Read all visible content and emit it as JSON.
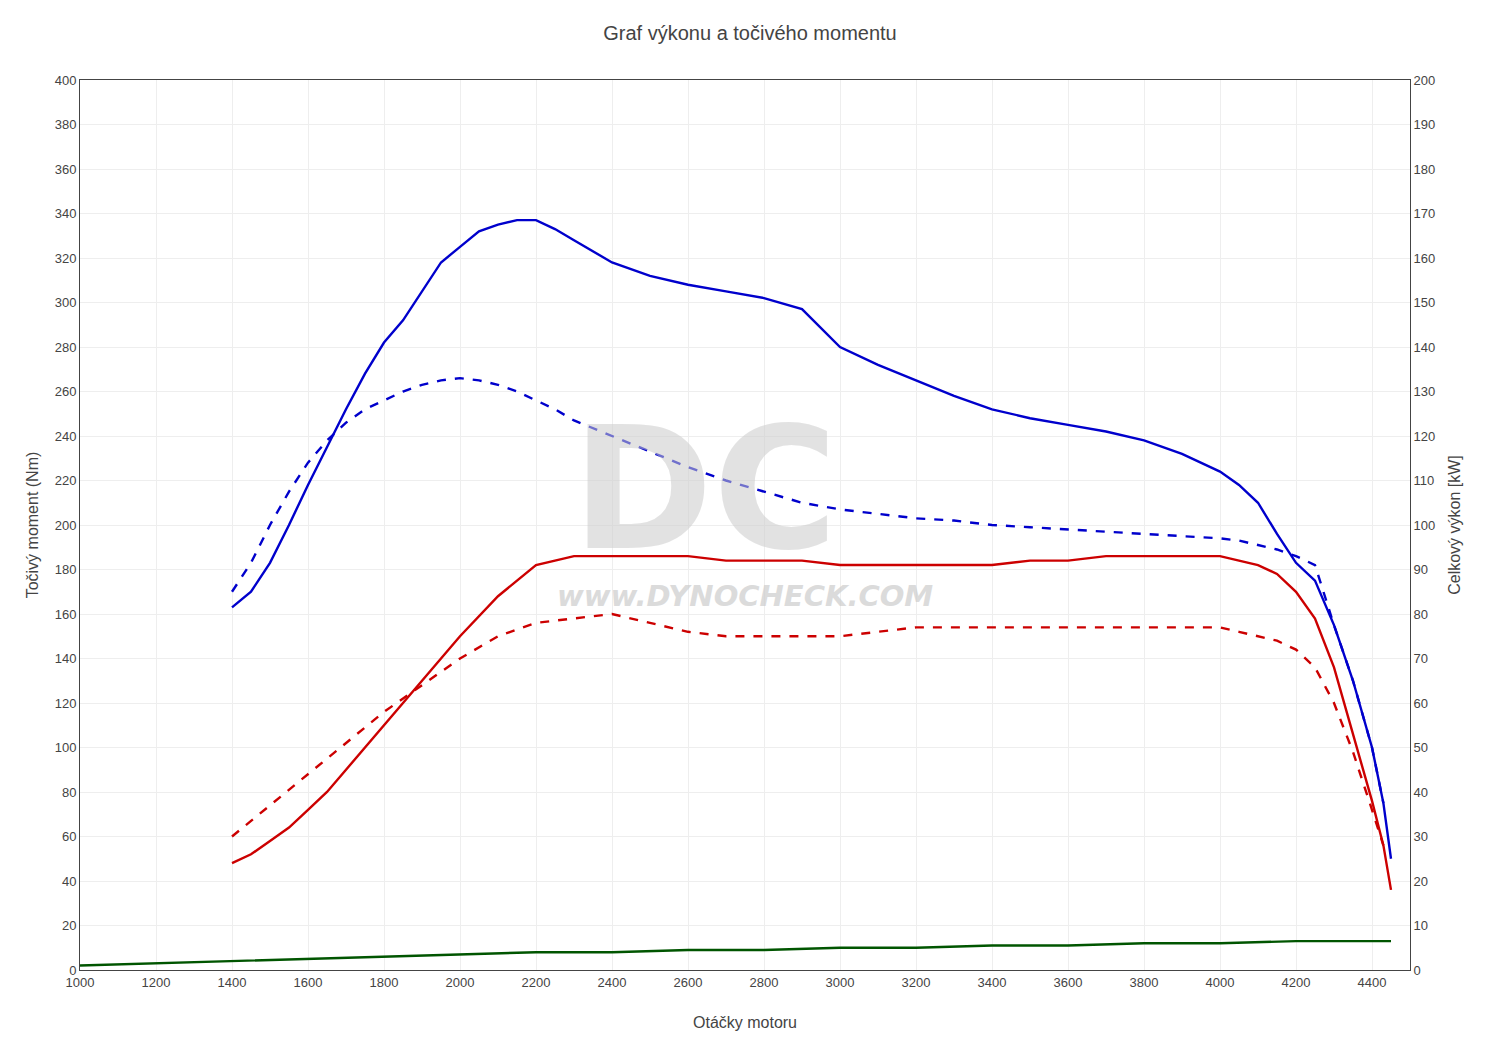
{
  "chart_data": {
    "type": "line",
    "title": "Graf výkonu a točivého momentu",
    "xlabel": "Otáčky motoru",
    "ylabel": "Točivý moment (Nm)",
    "y2label": "Celkový výkon [kW]",
    "xlim": [
      1000,
      4500
    ],
    "ylim": [
      0,
      400
    ],
    "y2lim": [
      0,
      200
    ],
    "xticks": [
      1000,
      1200,
      1400,
      1600,
      1800,
      2000,
      2200,
      2400,
      2600,
      2800,
      3000,
      3200,
      3400,
      3600,
      3800,
      4000,
      4200,
      4400
    ],
    "yticks": [
      0,
      20,
      40,
      60,
      80,
      100,
      120,
      140,
      160,
      180,
      200,
      220,
      240,
      260,
      280,
      300,
      320,
      340,
      360,
      380,
      400
    ],
    "y2ticks": [
      0,
      10,
      20,
      30,
      40,
      50,
      60,
      70,
      80,
      90,
      100,
      110,
      120,
      130,
      140,
      150,
      160,
      170,
      180,
      190,
      200
    ],
    "grid": true,
    "annotations": [
      "DC",
      "www.DYNOCHECK.COM"
    ],
    "series": [
      {
        "color": "#0000cc",
        "line_style": "solid",
        "x": [
          1400,
          1450,
          1500,
          1550,
          1600,
          1650,
          1700,
          1750,
          1800,
          1850,
          1900,
          1950,
          2000,
          2050,
          2100,
          2150,
          2200,
          2250,
          2300,
          2400,
          2500,
          2600,
          2700,
          2800,
          2900,
          3000,
          3100,
          3200,
          3300,
          3400,
          3500,
          3600,
          3700,
          3800,
          3900,
          4000,
          4050,
          4100,
          4150,
          4200,
          4250,
          4300,
          4350,
          4400,
          4430,
          4450
        ],
        "values": [
          163,
          170,
          183,
          200,
          218,
          235,
          252,
          268,
          282,
          292,
          305,
          318,
          325,
          332,
          335,
          337,
          337,
          333,
          328,
          318,
          312,
          308,
          305,
          302,
          297,
          280,
          272,
          265,
          258,
          252,
          248,
          245,
          242,
          238,
          232,
          224,
          218,
          210,
          196,
          183,
          175,
          155,
          130,
          100,
          75,
          50
        ]
      },
      {
        "color": "#0000cc",
        "line_style": "dashed",
        "x": [
          1400,
          1450,
          1500,
          1550,
          1600,
          1650,
          1700,
          1750,
          1800,
          1850,
          1900,
          1950,
          2000,
          2050,
          2100,
          2150,
          2200,
          2250,
          2300,
          2400,
          2500,
          2600,
          2700,
          2800,
          2900,
          3000,
          3100,
          3200,
          3300,
          3400,
          3500,
          3600,
          3700,
          3800,
          3900,
          4000,
          4050,
          4100,
          4150,
          4200,
          4250,
          4300,
          4350,
          4400,
          4430
        ],
        "values": [
          170,
          183,
          200,
          215,
          228,
          238,
          246,
          252,
          256,
          260,
          263,
          265,
          266,
          265,
          263,
          260,
          256,
          252,
          247,
          240,
          233,
          226,
          220,
          215,
          210,
          207,
          205,
          203,
          202,
          200,
          199,
          198,
          197,
          196,
          195,
          194,
          193,
          191,
          189,
          186,
          182,
          155,
          130,
          100,
          75
        ]
      },
      {
        "color": "#cc0000",
        "line_style": "solid",
        "axis": "y2",
        "x": [
          1400,
          1450,
          1500,
          1550,
          1600,
          1650,
          1700,
          1750,
          1800,
          1850,
          1900,
          1950,
          2000,
          2100,
          2200,
          2300,
          2400,
          2500,
          2600,
          2700,
          2800,
          2900,
          3000,
          3100,
          3200,
          3300,
          3400,
          3500,
          3600,
          3700,
          3800,
          3900,
          4000,
          4050,
          4100,
          4150,
          4200,
          4250,
          4300,
          4350,
          4400,
          4430,
          4450
        ],
        "values": [
          24,
          26,
          29,
          32,
          36,
          40,
          45,
          50,
          55,
          60,
          65,
          70,
          75,
          84,
          91,
          93,
          93,
          93,
          93,
          92,
          92,
          92,
          91,
          91,
          91,
          91,
          91,
          92,
          92,
          93,
          93,
          93,
          93,
          92,
          91,
          89,
          85,
          79,
          68,
          53,
          38,
          28,
          18
        ]
      },
      {
        "color": "#cc0000",
        "line_style": "dashed",
        "axis": "y2",
        "x": [
          1400,
          1500,
          1600,
          1700,
          1800,
          1900,
          2000,
          2100,
          2200,
          2300,
          2400,
          2500,
          2600,
          2700,
          2800,
          2900,
          3000,
          3100,
          3200,
          3300,
          3400,
          3500,
          3600,
          3700,
          3800,
          3900,
          4000,
          4050,
          4100,
          4150,
          4200,
          4250,
          4300,
          4350,
          4400,
          4430
        ],
        "values": [
          30,
          37,
          44,
          51,
          58,
          64,
          70,
          75,
          78,
          79,
          80,
          78,
          76,
          75,
          75,
          75,
          75,
          76,
          77,
          77,
          77,
          77,
          77,
          77,
          77,
          77,
          77,
          76,
          75,
          74,
          72,
          68,
          60,
          49,
          36,
          28
        ]
      },
      {
        "color": "#005500",
        "line_style": "solid",
        "x": [
          1000,
          1200,
          1400,
          1600,
          1800,
          2000,
          2200,
          2400,
          2600,
          2800,
          3000,
          3200,
          3400,
          3600,
          3800,
          4000,
          4200,
          4400,
          4450
        ],
        "values": [
          2,
          3,
          4,
          5,
          6,
          7,
          8,
          8,
          9,
          9,
          10,
          10,
          11,
          11,
          12,
          12,
          13,
          13,
          13
        ]
      }
    ]
  }
}
